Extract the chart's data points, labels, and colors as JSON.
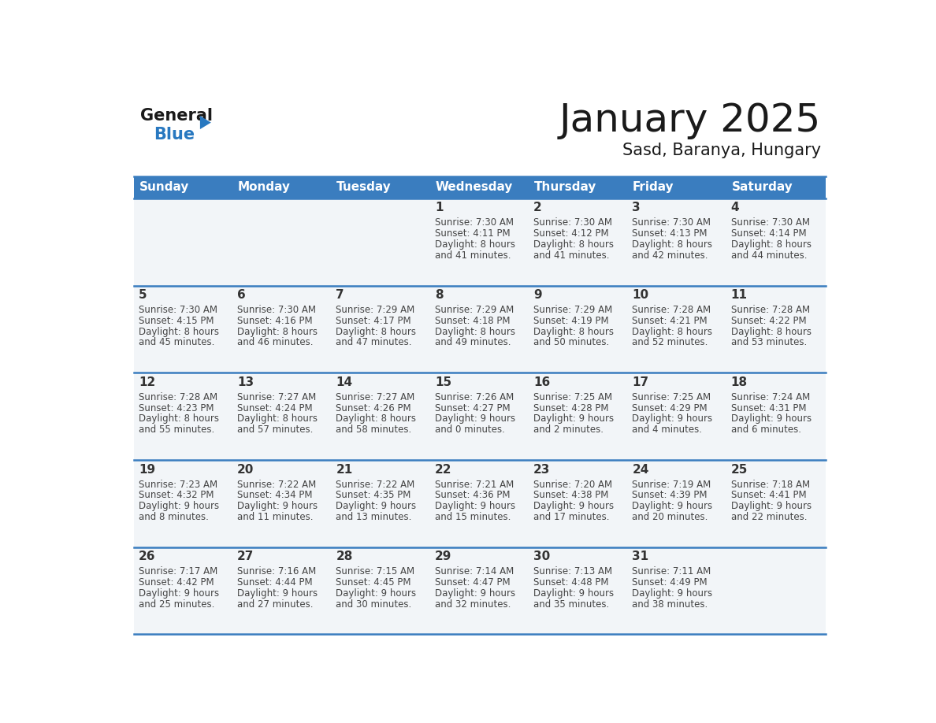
{
  "title": "January 2025",
  "subtitle": "Sasd, Baranya, Hungary",
  "header_color": "#3a7dbf",
  "header_text_color": "#ffffff",
  "cell_bg_color": "#f2f5f8",
  "day_number_color": "#333333",
  "day_text_color": "#444444",
  "separator_color": "#3a7dbf",
  "days_of_week": [
    "Sunday",
    "Monday",
    "Tuesday",
    "Wednesday",
    "Thursday",
    "Friday",
    "Saturday"
  ],
  "calendar_data": [
    [
      {
        "day": "",
        "sunrise": "",
        "sunset": "",
        "daylight": ""
      },
      {
        "day": "",
        "sunrise": "",
        "sunset": "",
        "daylight": ""
      },
      {
        "day": "",
        "sunrise": "",
        "sunset": "",
        "daylight": ""
      },
      {
        "day": "1",
        "sunrise": "7:30 AM",
        "sunset": "4:11 PM",
        "daylight": "8 hours and 41 minutes."
      },
      {
        "day": "2",
        "sunrise": "7:30 AM",
        "sunset": "4:12 PM",
        "daylight": "8 hours and 41 minutes."
      },
      {
        "day": "3",
        "sunrise": "7:30 AM",
        "sunset": "4:13 PM",
        "daylight": "8 hours and 42 minutes."
      },
      {
        "day": "4",
        "sunrise": "7:30 AM",
        "sunset": "4:14 PM",
        "daylight": "8 hours and 44 minutes."
      }
    ],
    [
      {
        "day": "5",
        "sunrise": "7:30 AM",
        "sunset": "4:15 PM",
        "daylight": "8 hours and 45 minutes."
      },
      {
        "day": "6",
        "sunrise": "7:30 AM",
        "sunset": "4:16 PM",
        "daylight": "8 hours and 46 minutes."
      },
      {
        "day": "7",
        "sunrise": "7:29 AM",
        "sunset": "4:17 PM",
        "daylight": "8 hours and 47 minutes."
      },
      {
        "day": "8",
        "sunrise": "7:29 AM",
        "sunset": "4:18 PM",
        "daylight": "8 hours and 49 minutes."
      },
      {
        "day": "9",
        "sunrise": "7:29 AM",
        "sunset": "4:19 PM",
        "daylight": "8 hours and 50 minutes."
      },
      {
        "day": "10",
        "sunrise": "7:28 AM",
        "sunset": "4:21 PM",
        "daylight": "8 hours and 52 minutes."
      },
      {
        "day": "11",
        "sunrise": "7:28 AM",
        "sunset": "4:22 PM",
        "daylight": "8 hours and 53 minutes."
      }
    ],
    [
      {
        "day": "12",
        "sunrise": "7:28 AM",
        "sunset": "4:23 PM",
        "daylight": "8 hours and 55 minutes."
      },
      {
        "day": "13",
        "sunrise": "7:27 AM",
        "sunset": "4:24 PM",
        "daylight": "8 hours and 57 minutes."
      },
      {
        "day": "14",
        "sunrise": "7:27 AM",
        "sunset": "4:26 PM",
        "daylight": "8 hours and 58 minutes."
      },
      {
        "day": "15",
        "sunrise": "7:26 AM",
        "sunset": "4:27 PM",
        "daylight": "9 hours and 0 minutes."
      },
      {
        "day": "16",
        "sunrise": "7:25 AM",
        "sunset": "4:28 PM",
        "daylight": "9 hours and 2 minutes."
      },
      {
        "day": "17",
        "sunrise": "7:25 AM",
        "sunset": "4:29 PM",
        "daylight": "9 hours and 4 minutes."
      },
      {
        "day": "18",
        "sunrise": "7:24 AM",
        "sunset": "4:31 PM",
        "daylight": "9 hours and 6 minutes."
      }
    ],
    [
      {
        "day": "19",
        "sunrise": "7:23 AM",
        "sunset": "4:32 PM",
        "daylight": "9 hours and 8 minutes."
      },
      {
        "day": "20",
        "sunrise": "7:22 AM",
        "sunset": "4:34 PM",
        "daylight": "9 hours and 11 minutes."
      },
      {
        "day": "21",
        "sunrise": "7:22 AM",
        "sunset": "4:35 PM",
        "daylight": "9 hours and 13 minutes."
      },
      {
        "day": "22",
        "sunrise": "7:21 AM",
        "sunset": "4:36 PM",
        "daylight": "9 hours and 15 minutes."
      },
      {
        "day": "23",
        "sunrise": "7:20 AM",
        "sunset": "4:38 PM",
        "daylight": "9 hours and 17 minutes."
      },
      {
        "day": "24",
        "sunrise": "7:19 AM",
        "sunset": "4:39 PM",
        "daylight": "9 hours and 20 minutes."
      },
      {
        "day": "25",
        "sunrise": "7:18 AM",
        "sunset": "4:41 PM",
        "daylight": "9 hours and 22 minutes."
      }
    ],
    [
      {
        "day": "26",
        "sunrise": "7:17 AM",
        "sunset": "4:42 PM",
        "daylight": "9 hours and 25 minutes."
      },
      {
        "day": "27",
        "sunrise": "7:16 AM",
        "sunset": "4:44 PM",
        "daylight": "9 hours and 27 minutes."
      },
      {
        "day": "28",
        "sunrise": "7:15 AM",
        "sunset": "4:45 PM",
        "daylight": "9 hours and 30 minutes."
      },
      {
        "day": "29",
        "sunrise": "7:14 AM",
        "sunset": "4:47 PM",
        "daylight": "9 hours and 32 minutes."
      },
      {
        "day": "30",
        "sunrise": "7:13 AM",
        "sunset": "4:48 PM",
        "daylight": "9 hours and 35 minutes."
      },
      {
        "day": "31",
        "sunrise": "7:11 AM",
        "sunset": "4:49 PM",
        "daylight": "9 hours and 38 minutes."
      },
      {
        "day": "",
        "sunrise": "",
        "sunset": "",
        "daylight": ""
      }
    ]
  ],
  "logo_general_color": "#1a1a1a",
  "logo_blue_color": "#2878c0",
  "logo_triangle_color": "#2878c0",
  "title_fontsize": 36,
  "subtitle_fontsize": 15,
  "header_fontsize": 11,
  "day_num_fontsize": 11,
  "cell_text_fontsize": 8.5
}
